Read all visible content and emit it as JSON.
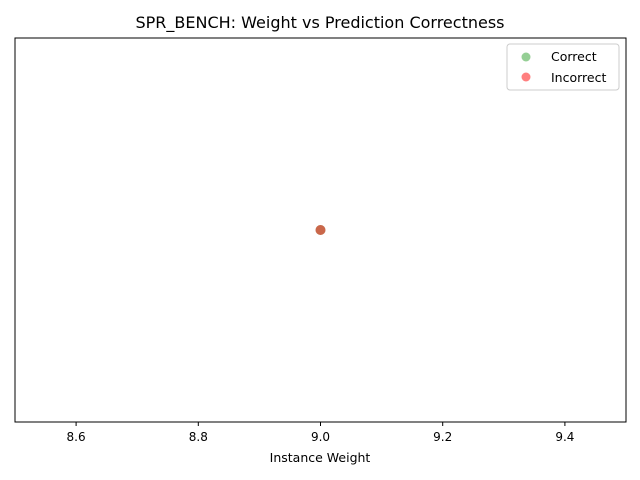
{
  "chart_data": {
    "type": "scatter",
    "title": "SPR_BENCH: Weight vs Prediction Correctness",
    "xlabel": "Instance Weight",
    "ylabel": "",
    "xlim": [
      8.5,
      9.5
    ],
    "ylim": [
      -0.055,
      0.055
    ],
    "x_ticks": [
      "8.6",
      "8.8",
      "9.0",
      "9.2",
      "9.4"
    ],
    "y_ticks": [],
    "grid": false,
    "legend_position": "top-right",
    "series": [
      {
        "name": "Correct",
        "color": "#2ca02c",
        "x": [
          9.0
        ],
        "y": [
          0.0
        ]
      },
      {
        "name": "Incorrect",
        "color": "#ff0000",
        "x": [
          9.0
        ],
        "y": [
          0.0
        ]
      }
    ]
  }
}
